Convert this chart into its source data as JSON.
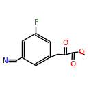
{
  "bg_color": "#ffffff",
  "bond_color": "#000000",
  "atom_colors": {
    "O": "#ff0000",
    "N": "#0000ff",
    "F": "#228822",
    "C": "#000000"
  },
  "figsize": [
    1.52,
    1.52
  ],
  "dpi": 100,
  "lw": 1.0
}
